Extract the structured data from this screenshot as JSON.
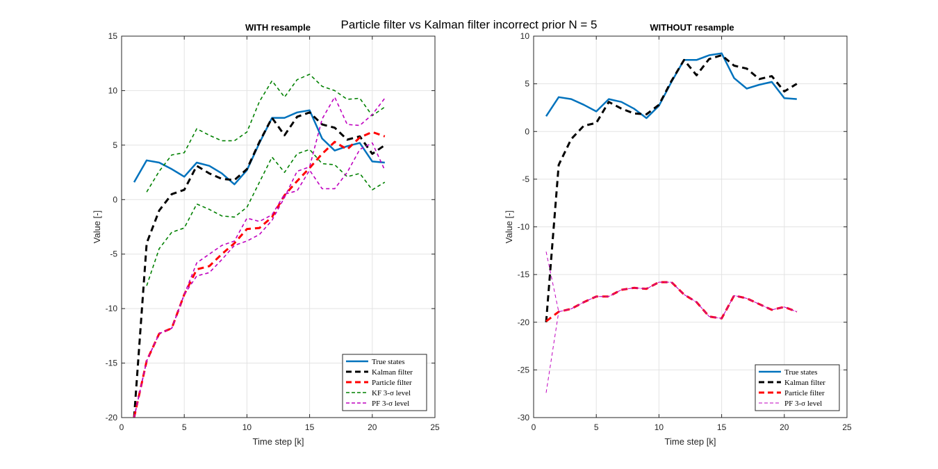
{
  "figure": {
    "suptitle": "Particle filter vs Kalman filter incorrect prior N = 5"
  },
  "chart_data": [
    {
      "type": "line",
      "title": "WITH resample",
      "xlabel": "Time step [k]",
      "ylabel": "Value [-]",
      "xlim": [
        0,
        25
      ],
      "ylim": [
        -20,
        15
      ],
      "xticks": [
        0,
        5,
        10,
        15,
        20,
        25
      ],
      "yticks": [
        -20,
        -15,
        -10,
        -5,
        0,
        5,
        10,
        15
      ],
      "grid": true,
      "legend_position": "bottom-right",
      "series": [
        {
          "name": "True states",
          "color": "#0072bd",
          "style": "solid",
          "width": 2.5,
          "x": [
            1,
            2,
            3,
            4,
            5,
            6,
            7,
            8,
            9,
            10,
            11,
            12,
            13,
            14,
            15,
            16,
            17,
            18,
            19,
            20,
            21
          ],
          "y": [
            1.6,
            3.6,
            3.4,
            2.8,
            2.1,
            3.4,
            3.1,
            2.4,
            1.4,
            2.7,
            5.2,
            7.5,
            7.5,
            8.0,
            8.2,
            5.6,
            4.5,
            4.9,
            5.2,
            3.5,
            3.4
          ]
        },
        {
          "name": "Kalman filter",
          "color": "#000000",
          "style": "dashed",
          "width": 3,
          "x": [
            1,
            2,
            3,
            4,
            5,
            6,
            7,
            8,
            9,
            10,
            11,
            12,
            13,
            14,
            15,
            16,
            17,
            18,
            19,
            20,
            21
          ],
          "y": [
            -20.0,
            -4.0,
            -1.0,
            0.5,
            0.9,
            3.1,
            2.4,
            1.9,
            1.8,
            2.8,
            5.3,
            7.5,
            5.9,
            7.6,
            8.0,
            6.9,
            6.6,
            5.5,
            5.8,
            4.2,
            5.0
          ]
        },
        {
          "name": "Particle filter",
          "color": "#ff0000",
          "style": "dashed",
          "width": 3,
          "x": [
            1,
            2,
            3,
            4,
            5,
            6,
            7,
            8,
            9,
            10,
            11,
            12,
            13,
            14,
            15,
            16,
            17,
            18,
            19,
            20,
            21
          ],
          "y": [
            -20.0,
            -14.8,
            -12.3,
            -11.8,
            -8.7,
            -6.4,
            -6.1,
            -5.0,
            -4.0,
            -2.7,
            -2.6,
            -1.6,
            0.4,
            1.7,
            2.9,
            4.2,
            5.3,
            4.6,
            5.7,
            6.2,
            5.8
          ]
        },
        {
          "name": "KF 3-σ level",
          "color": "#008000",
          "style": "dashed",
          "width": 1.6,
          "x": [
            2,
            3,
            4,
            5,
            6,
            7,
            8,
            9,
            10,
            11,
            12,
            13,
            14,
            15,
            16,
            17,
            18,
            19,
            20,
            21
          ],
          "y": [
            -7.9,
            -4.5,
            -3.0,
            -2.6,
            -0.4,
            -0.9,
            -1.5,
            -1.6,
            -0.7,
            1.6,
            3.9,
            2.5,
            4.2,
            4.6,
            3.3,
            3.2,
            2.1,
            2.4,
            0.9,
            1.6
          ]
        },
        {
          "name": "",
          "color": "#008000",
          "style": "dashed",
          "width": 1.6,
          "x": [
            2,
            3,
            4,
            5,
            6,
            7,
            8,
            9,
            10,
            11,
            12,
            13,
            14,
            15,
            16,
            17,
            18,
            19,
            20,
            21
          ],
          "y": [
            0.7,
            2.6,
            4.1,
            4.3,
            6.5,
            5.9,
            5.4,
            5.4,
            6.2,
            9.0,
            10.9,
            9.4,
            11.0,
            11.5,
            10.4,
            10.0,
            9.2,
            9.3,
            7.7,
            8.5
          ]
        },
        {
          "name": "PF 3-σ level",
          "color": "#bf00bf",
          "style": "dashed",
          "width": 1.6,
          "x": [
            1,
            2,
            3,
            4,
            5,
            6,
            7,
            8,
            9,
            10,
            11,
            12,
            13,
            14,
            15,
            16,
            17,
            18,
            19,
            20,
            21
          ],
          "y": [
            -20.0,
            -14.8,
            -12.3,
            -11.8,
            -8.7,
            -5.8,
            -5.0,
            -4.2,
            -3.8,
            -1.7,
            -2.0,
            -1.4,
            0.5,
            0.8,
            2.7,
            1.0,
            1.0,
            2.5,
            4.6,
            5.2,
            2.7
          ]
        },
        {
          "name": "",
          "color": "#bf00bf",
          "style": "dashed",
          "width": 1.6,
          "x": [
            1,
            2,
            3,
            4,
            5,
            6,
            7,
            8,
            9,
            10,
            11,
            12,
            13,
            14,
            15,
            16,
            17,
            18,
            19,
            20,
            21
          ],
          "y": [
            -20.0,
            -14.8,
            -12.3,
            -11.8,
            -8.7,
            -7.0,
            -6.7,
            -5.5,
            -4.2,
            -3.8,
            -3.2,
            -1.9,
            0.2,
            2.6,
            3.0,
            7.4,
            9.4,
            6.9,
            6.8,
            7.8,
            9.3
          ]
        }
      ],
      "legend": [
        "True states",
        "Kalman filter",
        "Particle filter",
        "KF 3-σ level",
        "PF 3-σ level"
      ]
    },
    {
      "type": "line",
      "title": "WITHOUT resample",
      "xlabel": "Time step [k]",
      "ylabel": "Value [-]",
      "xlim": [
        0,
        25
      ],
      "ylim": [
        -30,
        10
      ],
      "xticks": [
        0,
        5,
        10,
        15,
        20,
        25
      ],
      "yticks": [
        -30,
        -25,
        -20,
        -15,
        -10,
        -5,
        0,
        5,
        10
      ],
      "grid": true,
      "legend_position": "bottom-right",
      "series": [
        {
          "name": "True states",
          "color": "#0072bd",
          "style": "solid",
          "width": 2.5,
          "x": [
            1,
            2,
            3,
            4,
            5,
            6,
            7,
            8,
            9,
            10,
            11,
            12,
            13,
            14,
            15,
            16,
            17,
            18,
            19,
            20,
            21
          ],
          "y": [
            1.6,
            3.6,
            3.4,
            2.8,
            2.1,
            3.4,
            3.1,
            2.4,
            1.4,
            2.7,
            5.2,
            7.5,
            7.5,
            8.0,
            8.2,
            5.6,
            4.5,
            4.9,
            5.2,
            3.5,
            3.4
          ]
        },
        {
          "name": "Kalman filter",
          "color": "#000000",
          "style": "dashed",
          "width": 3,
          "x": [
            1,
            2,
            3,
            4,
            5,
            6,
            7,
            8,
            9,
            10,
            11,
            12,
            13,
            14,
            15,
            16,
            17,
            18,
            19,
            20,
            21
          ],
          "y": [
            -20.0,
            -3.5,
            -0.8,
            0.6,
            0.9,
            3.1,
            2.4,
            1.9,
            1.8,
            2.8,
            5.3,
            7.5,
            5.9,
            7.6,
            8.0,
            6.9,
            6.6,
            5.5,
            5.8,
            4.2,
            5.0
          ]
        },
        {
          "name": "Particle filter",
          "color": "#ff0000",
          "style": "dashed",
          "width": 3,
          "x": [
            1,
            2,
            3,
            4,
            5,
            6,
            7,
            8,
            9,
            10,
            11,
            12,
            13,
            14,
            15,
            16,
            17,
            18,
            19,
            20,
            21
          ],
          "y": [
            -19.9,
            -18.9,
            -18.6,
            -17.9,
            -17.3,
            -17.3,
            -16.6,
            -16.4,
            -16.5,
            -15.8,
            -15.8,
            -17.1,
            -17.9,
            -19.4,
            -19.6,
            -17.2,
            -17.5,
            -18.1,
            -18.7,
            -18.4,
            -18.9
          ]
        },
        {
          "name": "PF 3-σ level",
          "color": "#bf00bf",
          "style": "dashed",
          "width": 1,
          "x": [
            1,
            2,
            3,
            4,
            5,
            6,
            7,
            8,
            9,
            10,
            11,
            12,
            13,
            14,
            15,
            16,
            17,
            18,
            19,
            20,
            21
          ],
          "y": [
            -27.4,
            -18.9,
            -18.6,
            -17.9,
            -17.3,
            -17.3,
            -16.6,
            -16.4,
            -16.5,
            -15.8,
            -15.8,
            -17.1,
            -17.9,
            -19.4,
            -19.6,
            -17.2,
            -17.5,
            -18.1,
            -18.7,
            -18.4,
            -18.9
          ]
        },
        {
          "name": "",
          "color": "#bf00bf",
          "style": "dashed",
          "width": 1,
          "x": [
            1,
            2,
            3,
            4,
            5,
            6,
            7,
            8,
            9,
            10,
            11,
            12,
            13,
            14,
            15,
            16,
            17,
            18,
            19,
            20,
            21
          ],
          "y": [
            -12.6,
            -18.9,
            -18.6,
            -17.9,
            -17.3,
            -17.3,
            -16.6,
            -16.4,
            -16.5,
            -15.8,
            -15.8,
            -17.1,
            -17.9,
            -19.4,
            -19.6,
            -17.2,
            -17.5,
            -18.1,
            -18.7,
            -18.4,
            -18.9
          ]
        }
      ],
      "legend": [
        "True states",
        "Kalman filter",
        "Particle filter",
        "PF 3-σ level"
      ]
    }
  ]
}
